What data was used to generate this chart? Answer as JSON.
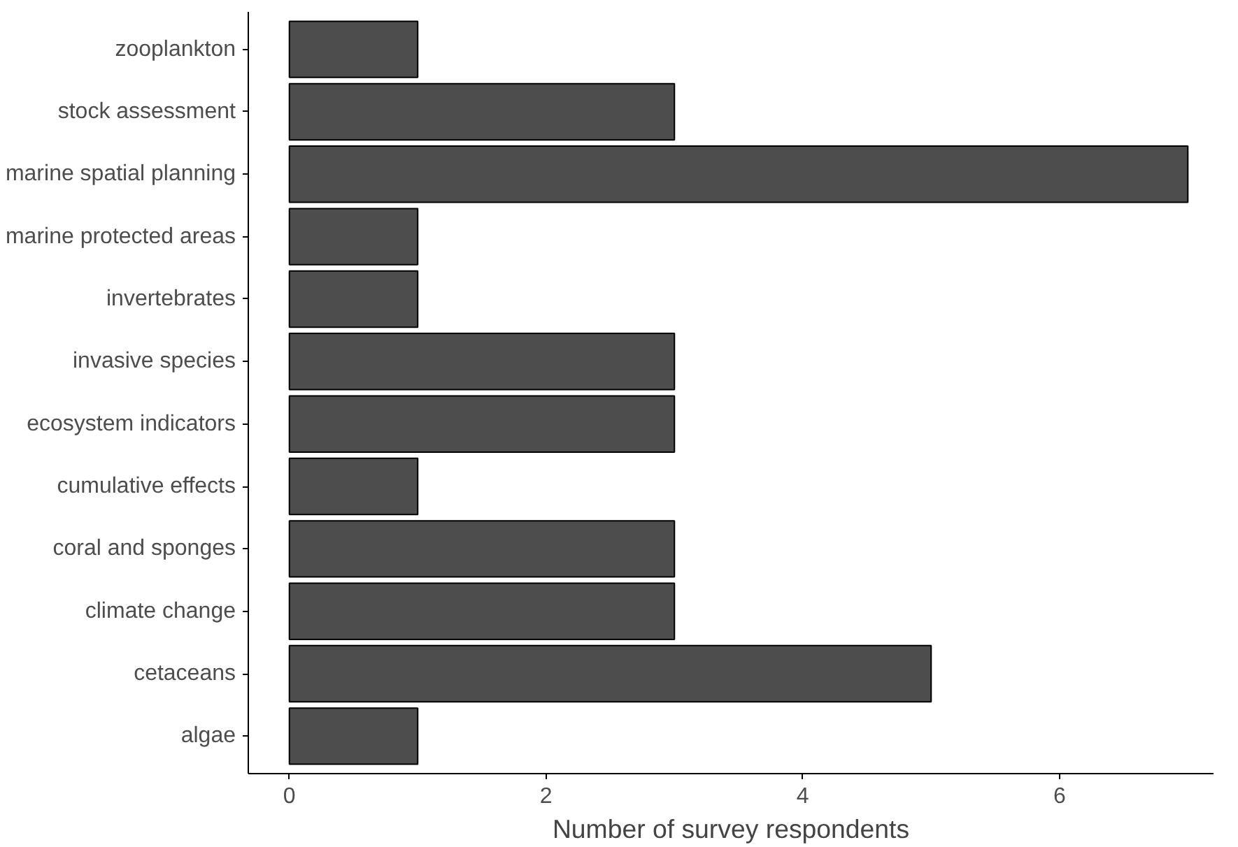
{
  "chart_data": {
    "type": "bar",
    "orientation": "horizontal",
    "xlabel": "Number of survey respondents",
    "categories": [
      "zooplankton",
      "stock assessment",
      "marine spatial planning",
      "marine protected areas",
      "invertebrates",
      "invasive species",
      "ecosystem indicators",
      "cumulative effects",
      "coral and sponges",
      "climate change",
      "cetaceans",
      "algae"
    ],
    "values": [
      1,
      3,
      7,
      1,
      1,
      3,
      3,
      1,
      3,
      3,
      5,
      1
    ],
    "color": "#4d4d4d",
    "xlim": [
      -0.32,
      7.2
    ],
    "xticks": [
      0,
      2,
      4,
      6
    ],
    "grid": false
  }
}
